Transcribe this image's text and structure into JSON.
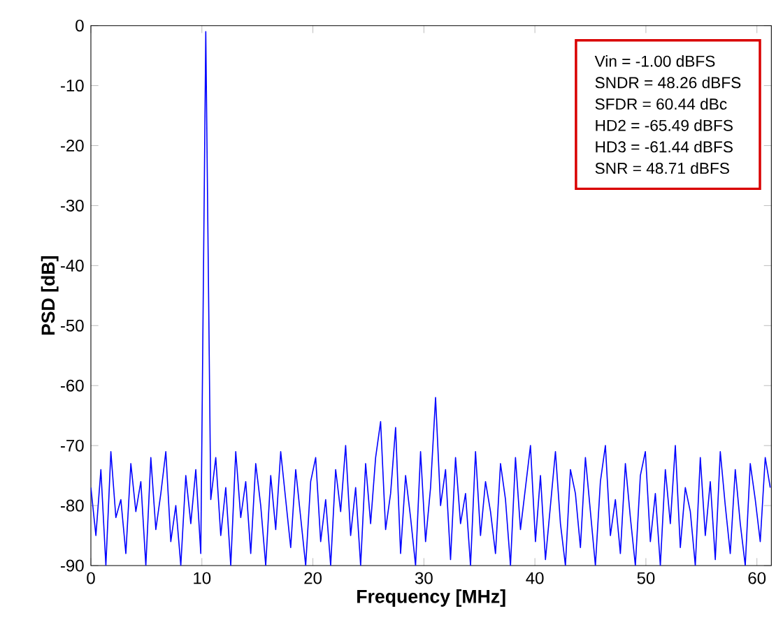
{
  "chart_data": {
    "type": "line",
    "xlabel": "Frequency [MHz]",
    "ylabel": "PSD [dB]",
    "xlim": [
      0,
      61.3
    ],
    "ylim": [
      -90,
      0
    ],
    "xticks": [
      0,
      10,
      20,
      30,
      40,
      50,
      60
    ],
    "yticks": [
      -90,
      -80,
      -70,
      -60,
      -50,
      -40,
      -30,
      -20,
      -10,
      0
    ],
    "grid": false,
    "annotations": [
      "Vin = -1.00 dBFS",
      "SNDR = 48.26 dBFS",
      "SFDR = 60.44 dBc",
      "HD2 = -65.49 dBFS",
      "HD3 = -61.44 dBFS",
      "SNR = 48.71 dBFS"
    ],
    "series": [
      {
        "color": "#0000ff",
        "x": [
          0,
          0.45,
          0.9,
          1.35,
          1.8,
          2.25,
          2.7,
          3.15,
          3.6,
          4.05,
          4.5,
          4.95,
          5.4,
          5.85,
          6.3,
          6.75,
          7.2,
          7.65,
          8.1,
          8.55,
          9,
          9.45,
          9.9,
          10.35,
          10.8,
          11.25,
          11.7,
          12.15,
          12.6,
          13.05,
          13.5,
          13.95,
          14.4,
          14.85,
          15.3,
          15.75,
          16.2,
          16.65,
          17.1,
          17.55,
          18,
          18.45,
          18.9,
          19.35,
          19.8,
          20.25,
          20.7,
          21.15,
          21.6,
          22.05,
          22.5,
          22.95,
          23.4,
          23.85,
          24.3,
          24.75,
          25.2,
          25.65,
          26.1,
          26.55,
          27,
          27.45,
          27.9,
          28.35,
          28.8,
          29.25,
          29.7,
          30.15,
          30.6,
          31.05,
          31.5,
          31.95,
          32.4,
          32.85,
          33.3,
          33.75,
          34.2,
          34.65,
          35.1,
          35.55,
          36,
          36.45,
          36.9,
          37.35,
          37.8,
          38.25,
          38.7,
          39.15,
          39.6,
          40.05,
          40.5,
          40.95,
          41.4,
          41.85,
          42.3,
          42.75,
          43.2,
          43.65,
          44.1,
          44.55,
          45,
          45.45,
          45.9,
          46.35,
          46.8,
          47.25,
          47.7,
          48.15,
          48.6,
          49.05,
          49.5,
          49.95,
          50.4,
          50.85,
          51.3,
          51.75,
          52.2,
          52.65,
          53.1,
          53.55,
          54,
          54.45,
          54.9,
          55.35,
          55.8,
          56.25,
          56.7,
          57.15,
          57.6,
          58.05,
          58.5,
          58.95,
          59.4,
          59.85,
          60.3,
          60.75,
          61.2
        ],
        "values": [
          -77,
          -85,
          -74,
          -90,
          -71,
          -82,
          -79,
          -88,
          -73,
          -81,
          -76,
          -90,
          -72,
          -84,
          -78,
          -71,
          -86,
          -80,
          -90,
          -75,
          -83,
          -74,
          -88,
          -1,
          -79,
          -72,
          -85,
          -77,
          -90,
          -71,
          -82,
          -76,
          -88,
          -73,
          -80,
          -90,
          -75,
          -84,
          -71,
          -79,
          -87,
          -74,
          -82,
          -90,
          -76,
          -72,
          -86,
          -79,
          -90,
          -74,
          -81,
          -70,
          -85,
          -77,
          -90,
          -73,
          -83,
          -72,
          -66,
          -84,
          -78,
          -67,
          -88,
          -75,
          -82,
          -90,
          -71,
          -86,
          -77,
          -62,
          -80,
          -74,
          -89,
          -72,
          -83,
          -78,
          -90,
          -71,
          -85,
          -76,
          -81,
          -88,
          -73,
          -79,
          -90,
          -72,
          -84,
          -77,
          -70,
          -86,
          -75,
          -89,
          -80,
          -71,
          -83,
          -90,
          -74,
          -78,
          -87,
          -72,
          -81,
          -90,
          -76,
          -70,
          -85,
          -79,
          -88,
          -73,
          -82,
          -90,
          -75,
          -71,
          -86,
          -78,
          -90,
          -74,
          -83,
          -70,
          -87,
          -77,
          -81,
          -90,
          -72,
          -85,
          -76,
          -89,
          -71,
          -80,
          -88,
          -74,
          -83,
          -90,
          -73,
          -79,
          -86,
          -72,
          -77
        ]
      }
    ]
  }
}
